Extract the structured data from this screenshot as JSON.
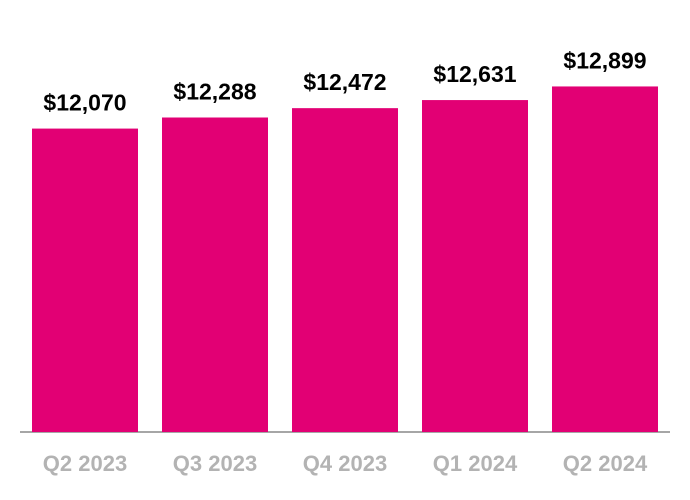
{
  "chart_data": {
    "type": "bar",
    "categories": [
      "Q2 2023",
      "Q3 2023",
      "Q4 2023",
      "Q1 2024",
      "Q2 2024"
    ],
    "values": [
      12070,
      12288,
      12472,
      12631,
      12899
    ],
    "value_labels": [
      "$12,070",
      "$12,288",
      "$12,472",
      "$12,631",
      "$12,899"
    ],
    "color": "#e20074",
    "ylim": [
      6100,
      14600
    ]
  }
}
